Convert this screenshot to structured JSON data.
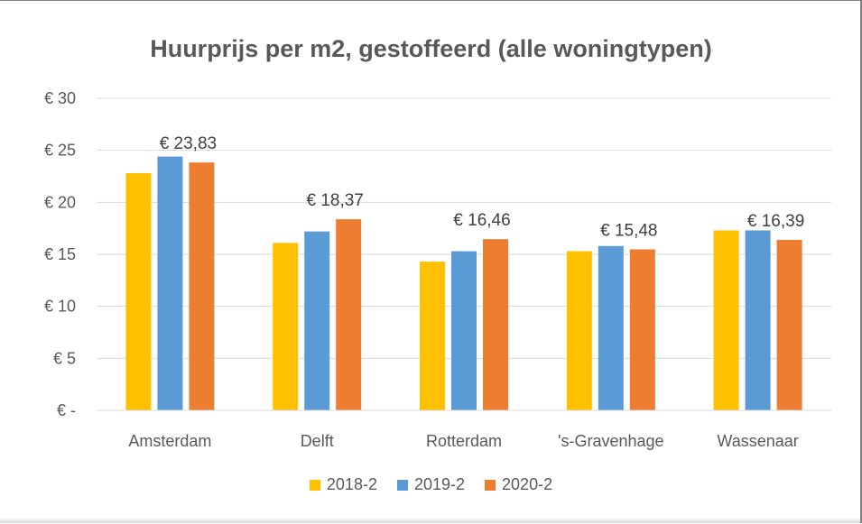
{
  "chart_data": {
    "type": "bar",
    "title": "Huurprijs per m2, gestoffeerd (alle woningtypen)",
    "categories": [
      "Amsterdam",
      "Delft",
      "Rotterdam",
      "'s-Gravenhage",
      "Wassenaar"
    ],
    "series": [
      {
        "name": "2018-2",
        "color": "#FFC000",
        "values": [
          22.8,
          16.1,
          14.3,
          15.3,
          17.3
        ]
      },
      {
        "name": "2019-2",
        "color": "#5B9BD5",
        "values": [
          24.4,
          17.2,
          15.3,
          15.8,
          17.3
        ]
      },
      {
        "name": "2020-2",
        "color": "#ED7D31",
        "values": [
          23.83,
          18.37,
          16.46,
          15.48,
          16.39
        ]
      }
    ],
    "data_labels": [
      "€ 23,83",
      "€ 18,37",
      "€ 16,46",
      "€ 15,48",
      "€ 16,39"
    ],
    "y_ticks": [
      {
        "value": 0,
        "label": "€ -"
      },
      {
        "value": 5,
        "label": "€ 5"
      },
      {
        "value": 10,
        "label": "€ 10"
      },
      {
        "value": 15,
        "label": "€ 15"
      },
      {
        "value": 20,
        "label": "€ 20"
      },
      {
        "value": 25,
        "label": "€ 25"
      },
      {
        "value": 30,
        "label": "€ 30"
      }
    ],
    "ylim": [
      0,
      30
    ],
    "grid": true,
    "legend_position": "bottom",
    "gridline_color": "#D9D9D9"
  }
}
